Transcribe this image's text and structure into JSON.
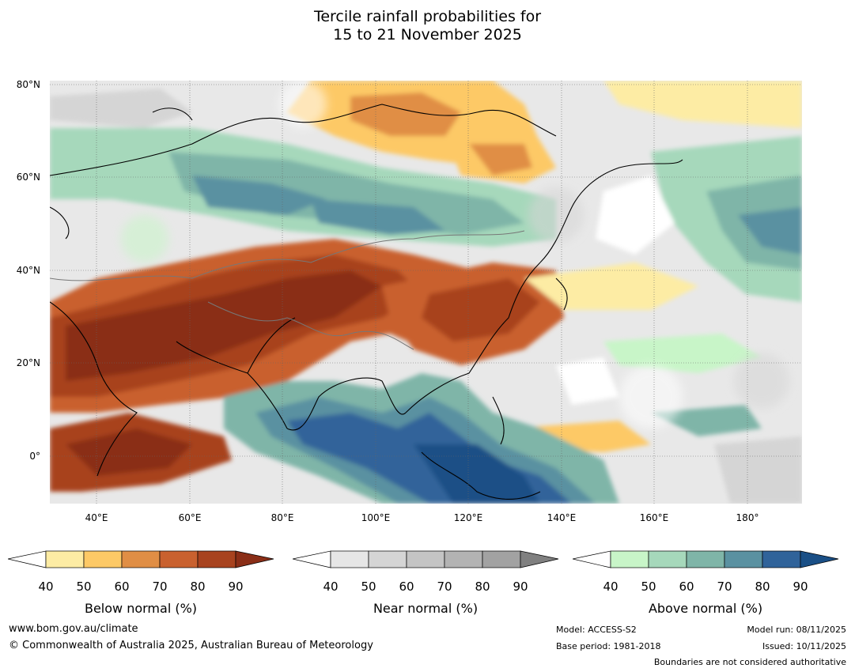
{
  "title": {
    "line1": "Tercile rainfall probabilities for",
    "line2": "15 to 21 November 2025"
  },
  "map": {
    "latitude_labels": [
      "80°N",
      "60°N",
      "40°N",
      "20°N",
      "0°"
    ],
    "longitude_labels": [
      "40°E",
      "60°E",
      "80°E",
      "100°E",
      "120°E",
      "140°E",
      "160°E",
      "180°"
    ],
    "lat_range": [
      -10,
      80
    ],
    "lon_range": [
      30,
      191
    ],
    "legend_ticks": [
      "40",
      "50",
      "60",
      "70",
      "80",
      "90"
    ],
    "legends": [
      {
        "name": "Below normal (%)",
        "colors": [
          "#ffffff",
          "#fdeca4",
          "#fdc966",
          "#e08e45",
          "#c9612f",
          "#a8431f",
          "#8a2e17"
        ]
      },
      {
        "name": "Near normal (%)",
        "colors": [
          "#ffffff",
          "#e6e6e6",
          "#d5d5d5",
          "#c4c4c4",
          "#b3b3b3",
          "#a2a2a2",
          "#808080"
        ]
      },
      {
        "name": "Above normal (%)",
        "colors": [
          "#ffffff",
          "#c8f5c8",
          "#a6d8bb",
          "#7fb5a8",
          "#5a91a1",
          "#30639a",
          "#1a4f86"
        ]
      }
    ]
  },
  "footer": {
    "website": "www.bom.gov.au/climate",
    "copyright": "© Commonwealth of Australia 2025, Australian Bureau of Meteorology",
    "model": "Model: ACCESS-S2",
    "base_period": "Base period: 1981-2018",
    "model_run": "Model run: 08/11/2025",
    "issued": "Issued: 10/11/2025",
    "boundaries_note": "Boundaries are not considered authoritative"
  }
}
